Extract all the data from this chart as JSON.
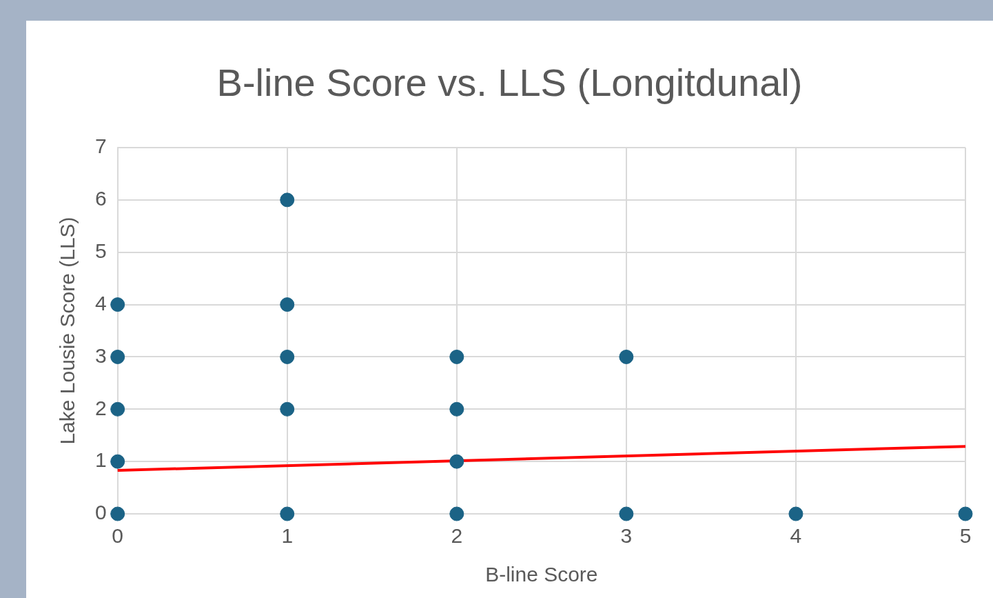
{
  "chart_data": {
    "type": "scatter",
    "title": "B-line Score vs. LLS (Longitdunal)",
    "xlabel": "B-line Score",
    "ylabel": "Lake Lousie Score (LLS)",
    "series": [
      {
        "color": "#1b6386",
        "x": [
          0,
          0,
          0,
          0,
          0,
          1,
          1,
          1,
          1,
          1,
          2,
          2,
          2,
          2,
          3,
          3,
          4,
          5
        ],
        "values": [
          0,
          1,
          2,
          3,
          4,
          0,
          2,
          3,
          4,
          6,
          0,
          1,
          2,
          3,
          0,
          3,
          0,
          0
        ]
      },
      {
        "type": "line",
        "color": "#ff0000",
        "x": [
          0,
          5
        ],
        "values": [
          0.83,
          1.29
        ],
        "marker": "none"
      }
    ],
    "xlim": [
      0,
      5
    ],
    "xticks": [
      0,
      1,
      2,
      3,
      4,
      5
    ],
    "ylim": [
      0,
      7
    ],
    "yticks": [
      0,
      1,
      2,
      3,
      4,
      5,
      6,
      7
    ],
    "grid": true,
    "legend": false,
    "marker": "circle"
  }
}
